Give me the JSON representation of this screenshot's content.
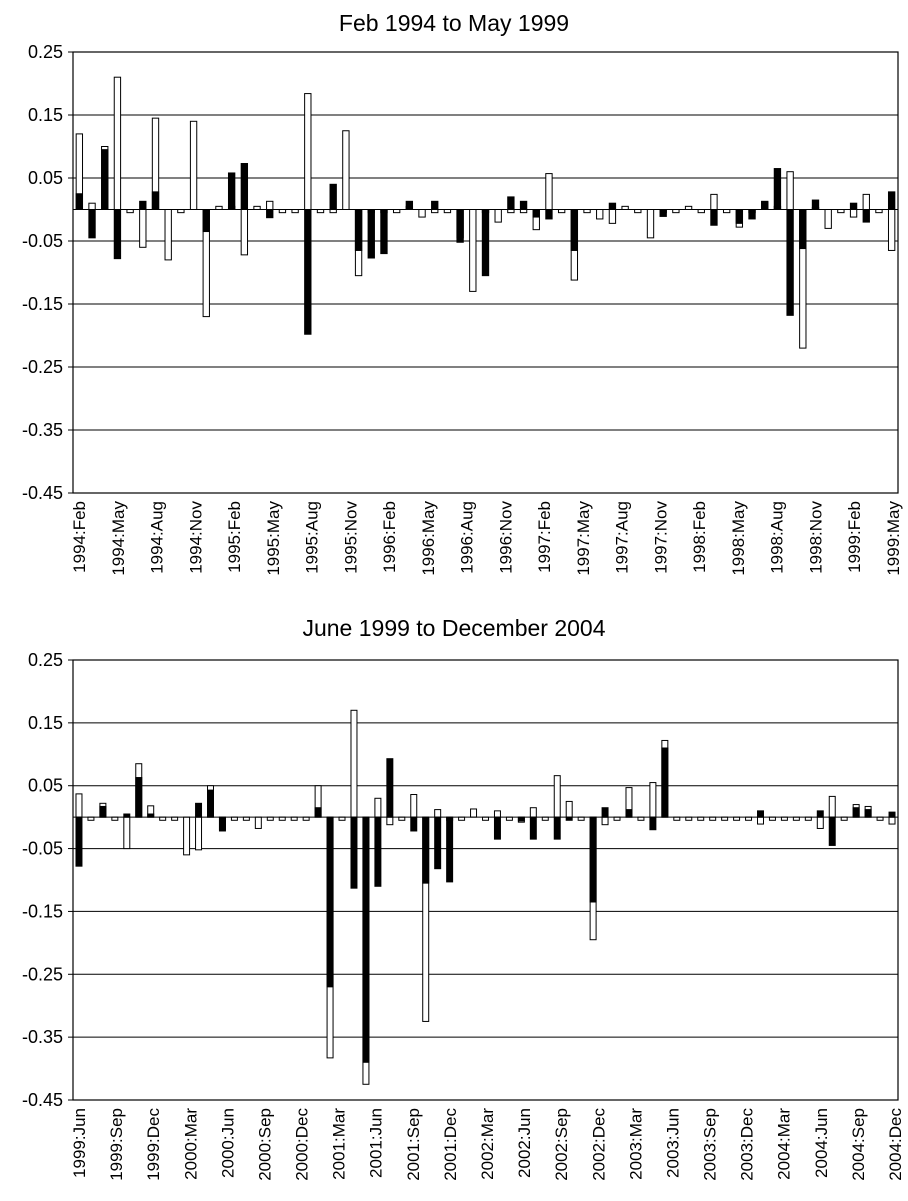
{
  "chart_data": [
    {
      "type": "bar",
      "title": "Feb 1994 to May 1999",
      "ylim": [
        -0.45,
        0.25
      ],
      "yticks": [
        "0.25",
        "0.15",
        "0.05",
        "-0.05",
        "-0.15",
        "-0.25",
        "-0.35",
        "-0.45"
      ],
      "xticks": [
        "1994:Feb",
        "1994:May",
        "1994:Aug",
        "1994:Nov",
        "1995:Feb",
        "1995:May",
        "1995:Aug",
        "1995:Nov",
        "1996:Feb",
        "1996:May",
        "1996:Aug",
        "1996:Nov",
        "1997:Feb",
        "1997:May",
        "1997:Aug",
        "1997:Nov",
        "1998:Feb",
        "1998:May",
        "1998:Aug",
        "1998:Nov",
        "1999:Feb",
        "1999:May"
      ],
      "grid": true,
      "series": [
        {
          "fill": "#ffffff",
          "values": [
            0.12,
            0.01,
            0.1,
            0.21,
            -0.005,
            -0.06,
            0.145,
            -0.08,
            -0.005,
            0.14,
            -0.17,
            0.005,
            0.005,
            -0.072,
            0.005,
            0.013,
            -0.005,
            -0.005,
            0.184,
            -0.005,
            -0.005,
            0.125,
            -0.105,
            -0.005,
            -0.005,
            -0.005,
            0.005,
            -0.012,
            -0.005,
            -0.005,
            -0.045,
            -0.13,
            -0.005,
            -0.02,
            -0.005,
            -0.005,
            -0.032,
            0.057,
            -0.005,
            -0.112,
            -0.005,
            -0.015,
            -0.022,
            0.005,
            -0.005,
            -0.045,
            -0.005,
            -0.005,
            0.005,
            -0.005,
            0.024,
            -0.005,
            -0.028,
            -0.005,
            0.013,
            0.005,
            0.06,
            -0.22,
            0.003,
            -0.03,
            -0.005,
            -0.012,
            0.024,
            -0.005,
            -0.065
          ]
        },
        {
          "fill": "#000000",
          "values": [
            0.025,
            -0.045,
            0.095,
            -0.078,
            0,
            0.013,
            0.028,
            0,
            0,
            0,
            -0.035,
            0,
            0.058,
            0.073,
            0,
            -0.013,
            0,
            0,
            -0.198,
            0,
            0.04,
            0,
            -0.065,
            -0.077,
            -0.07,
            0,
            0.013,
            0,
            0.013,
            0,
            -0.052,
            0,
            -0.105,
            0,
            0.02,
            0.013,
            -0.012,
            -0.015,
            0,
            -0.065,
            0,
            0,
            0.01,
            0,
            0,
            0,
            -0.011,
            0,
            0,
            0,
            -0.025,
            0,
            -0.022,
            -0.015,
            0.012,
            0.065,
            -0.168,
            -0.062,
            0.015,
            0,
            0,
            0.01,
            -0.02,
            0,
            0.028
          ]
        }
      ]
    },
    {
      "type": "bar",
      "title": "June 1999 to December 2004",
      "ylim": [
        -0.45,
        0.25
      ],
      "yticks": [
        "0.25",
        "0.15",
        "0.05",
        "-0.05",
        "-0.15",
        "-0.25",
        "-0.35",
        "-0.45"
      ],
      "xticks": [
        "1999:Jun",
        "1999:Sep",
        "1999:Dec",
        "2000:Mar",
        "2000:Jun",
        "2000:Sep",
        "2000:Dec",
        "2001:Mar",
        "2001:Jun",
        "2001:Sep",
        "2001:Dec",
        "2002:Mar",
        "2002:Jun",
        "2002:Sep",
        "2002:Dec",
        "2003:Mar",
        "2003:Jun",
        "2003:Sep",
        "2003:Dec",
        "2004:Mar",
        "2004:Jun",
        "2004:Sep",
        "2004:Dec"
      ],
      "grid": true,
      "series": [
        {
          "fill": "#ffffff",
          "values": [
            0.037,
            -0.005,
            0.022,
            -0.005,
            -0.05,
            0.085,
            0.018,
            -0.005,
            -0.005,
            -0.06,
            -0.052,
            0.05,
            -0.02,
            -0.005,
            -0.005,
            -0.018,
            -0.005,
            -0.005,
            -0.005,
            -0.005,
            0.05,
            -0.383,
            -0.005,
            0.17,
            -0.425,
            0.03,
            -0.012,
            -0.005,
            0.036,
            -0.325,
            0.012,
            -0.005,
            -0.005,
            0.013,
            -0.005,
            0.01,
            -0.005,
            -0.008,
            0.015,
            -0.005,
            0.066,
            0.025,
            -0.005,
            -0.195,
            -0.012,
            -0.005,
            0.047,
            -0.005,
            0.055,
            0.122,
            -0.005,
            -0.005,
            -0.005,
            -0.005,
            -0.005,
            -0.005,
            -0.005,
            -0.011,
            -0.005,
            -0.005,
            -0.005,
            -0.005,
            -0.018,
            0.033,
            -0.005,
            0.02,
            0.017,
            -0.005,
            -0.011
          ]
        },
        {
          "fill": "#000000",
          "values": [
            -0.078,
            0,
            0.017,
            0,
            0.005,
            0.063,
            0.005,
            0,
            0,
            0,
            0.022,
            0.043,
            -0.022,
            0,
            0,
            0,
            0,
            0,
            0,
            0,
            0.015,
            -0.27,
            0,
            -0.113,
            -0.39,
            -0.11,
            0.093,
            0,
            -0.022,
            -0.105,
            -0.082,
            -0.103,
            0,
            0,
            0,
            -0.035,
            0,
            -0.006,
            -0.035,
            0,
            -0.035,
            -0.005,
            0,
            -0.135,
            0.015,
            0,
            0.012,
            0,
            -0.02,
            0.11,
            0,
            0,
            0,
            0,
            0,
            0,
            0,
            0.01,
            0,
            0,
            0,
            0,
            0.01,
            -0.045,
            0,
            0.015,
            0.012,
            0,
            0.008
          ]
        }
      ]
    }
  ]
}
